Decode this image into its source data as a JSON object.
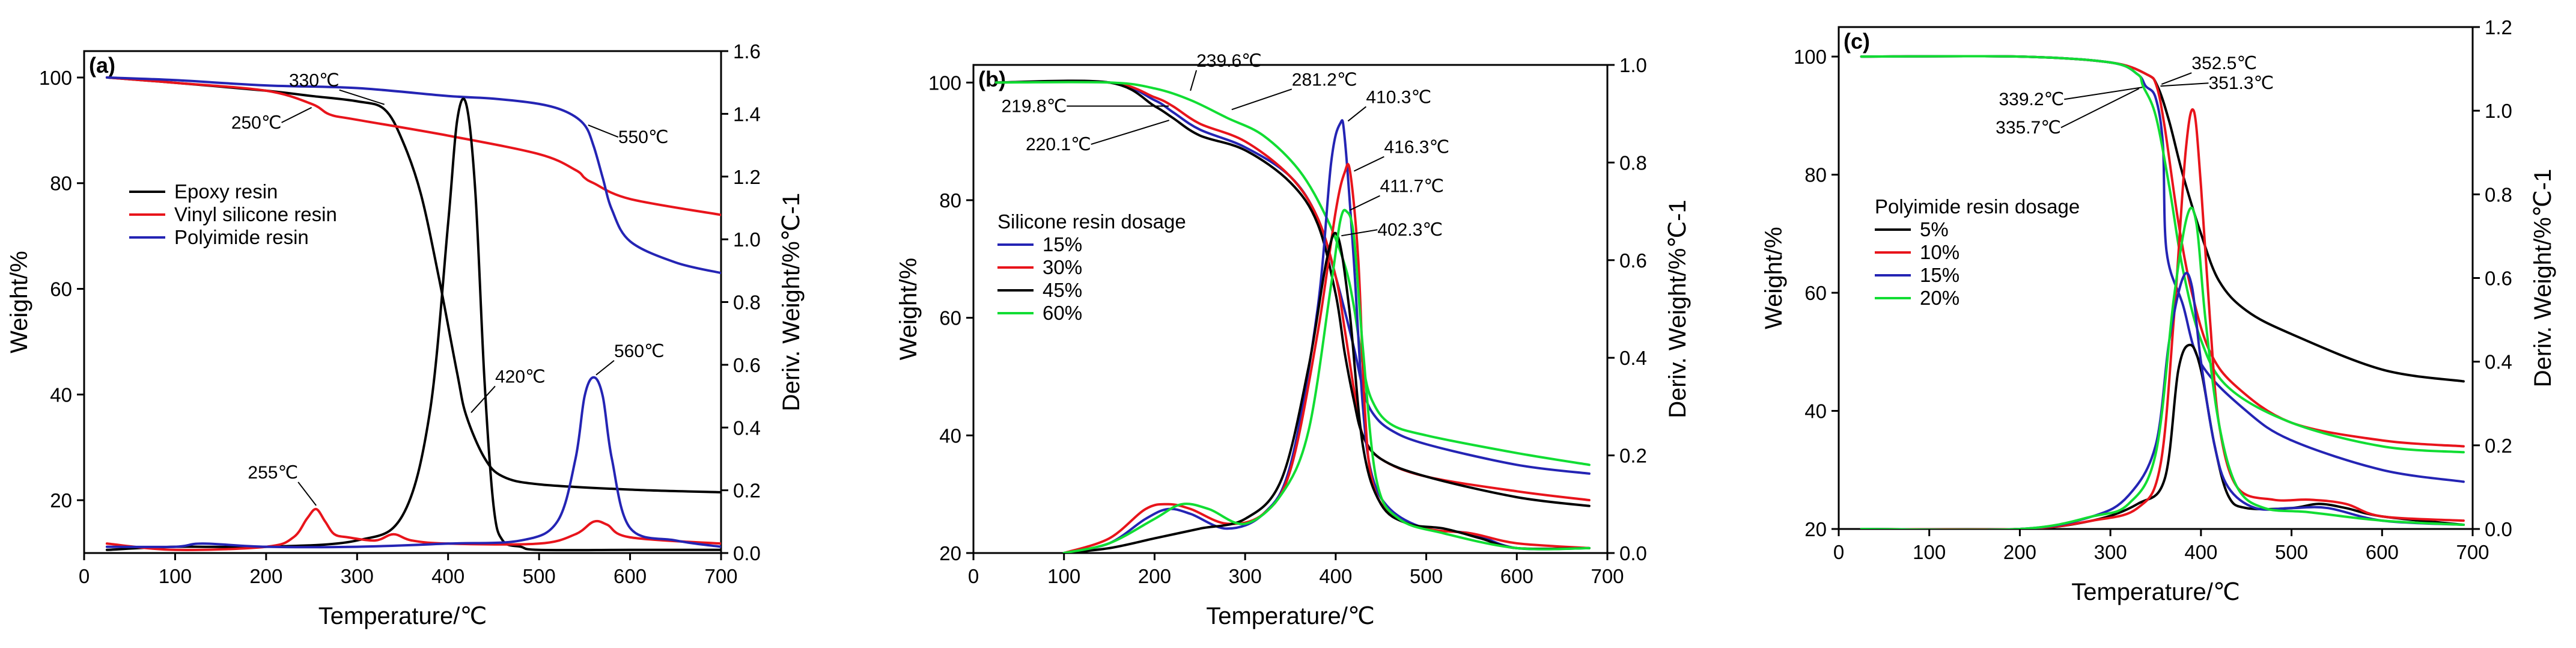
{
  "chart_data": [
    {
      "type": "line",
      "panel": "(a)",
      "xlabel": "Temperature/℃",
      "ylabel": "Weight/%",
      "y2label": "Deriv. Weight/%℃-1",
      "xlim": [
        0,
        700
      ],
      "ylim": [
        10,
        105
      ],
      "y2lim": [
        0,
        1.6
      ],
      "xticks": [
        0,
        100,
        200,
        300,
        400,
        500,
        600,
        700
      ],
      "yticks": [
        20,
        40,
        60,
        80,
        100
      ],
      "y2ticks": [
        0.0,
        0.2,
        0.4,
        0.6,
        0.8,
        1.0,
        1.2,
        1.4,
        1.6
      ],
      "legend": {
        "title": "",
        "position": "left-middle"
      },
      "series": [
        {
          "name": "Epoxy resin",
          "color": "#000000",
          "axis": "y",
          "x": [
            25,
            100,
            200,
            250,
            300,
            330,
            350,
            370,
            390,
            410,
            420,
            440,
            460,
            500,
            600,
            700
          ],
          "values": [
            100,
            99,
            97.5,
            96.5,
            95.5,
            94,
            88,
            78,
            62,
            44,
            36,
            28,
            24.5,
            23,
            22,
            21.5
          ]
        },
        {
          "name": "Vinyl silicone resin",
          "color": "#e8141b",
          "axis": "y",
          "x": [
            25,
            100,
            200,
            250,
            270,
            300,
            400,
            500,
            540,
            550,
            560,
            600,
            700
          ],
          "values": [
            100,
            99,
            97.5,
            95,
            93,
            92,
            89,
            85.5,
            82.5,
            81,
            80,
            77,
            74
          ]
        },
        {
          "name": "Polyimide resin",
          "color": "#2424b4",
          "axis": "y",
          "x": [
            25,
            100,
            200,
            300,
            400,
            450,
            500,
            530,
            550,
            560,
            570,
            580,
            600,
            650,
            700
          ],
          "values": [
            100,
            99.5,
            98.5,
            98,
            96.5,
            96,
            95,
            93.5,
            91,
            87,
            81,
            75,
            69,
            65,
            63
          ]
        },
        {
          "name": "Epoxy resin DTG",
          "color": "#000000",
          "axis": "y2",
          "x": [
            25,
            100,
            200,
            300,
            350,
            380,
            400,
            410,
            420,
            430,
            440,
            450,
            460,
            480,
            500,
            600,
            700
          ],
          "values": [
            0.01,
            0.02,
            0.02,
            0.04,
            0.12,
            0.45,
            1.05,
            1.38,
            1.43,
            1.15,
            0.55,
            0.15,
            0.04,
            0.02,
            0.01,
            0.01,
            0.01
          ]
        },
        {
          "name": "Vinyl silicone resin DTG",
          "color": "#e8141b",
          "axis": "y2",
          "x": [
            25,
            100,
            200,
            230,
            245,
            255,
            265,
            275,
            290,
            320,
            340,
            360,
            400,
            500,
            540,
            560,
            575,
            600,
            700
          ],
          "values": [
            0.03,
            0.01,
            0.02,
            0.05,
            0.11,
            0.14,
            0.1,
            0.06,
            0.05,
            0.04,
            0.06,
            0.04,
            0.03,
            0.03,
            0.06,
            0.1,
            0.09,
            0.05,
            0.03
          ]
        },
        {
          "name": "Polyimide resin DTG",
          "color": "#2424b4",
          "axis": "y2",
          "x": [
            25,
            100,
            130,
            200,
            300,
            400,
            480,
            520,
            540,
            550,
            560,
            570,
            580,
            600,
            650,
            700
          ],
          "values": [
            0.02,
            0.02,
            0.03,
            0.02,
            0.02,
            0.03,
            0.04,
            0.1,
            0.3,
            0.5,
            0.56,
            0.5,
            0.3,
            0.08,
            0.04,
            0.02
          ]
        }
      ],
      "annotations": [
        {
          "text": "330℃",
          "x": 330,
          "y": 94
        },
        {
          "text": "420℃",
          "x": 420,
          "y": 36
        },
        {
          "text": "550℃",
          "x": 550,
          "y": 91
        },
        {
          "text": "250℃",
          "x": 250,
          "y": 95
        },
        {
          "text": "560℃",
          "x": 560,
          "y": 0.56
        },
        {
          "text": "255℃",
          "x": 255,
          "y": 0.14
        }
      ]
    },
    {
      "type": "line",
      "panel": "(b)",
      "xlabel": "Temperature/℃",
      "ylabel": "Weight/%",
      "y2label": "Deriv. Weight/%℃-1",
      "xlim": [
        0,
        700
      ],
      "ylim": [
        20,
        103
      ],
      "y2lim": [
        0,
        1.0
      ],
      "xticks": [
        0,
        100,
        200,
        300,
        400,
        500,
        600,
        700
      ],
      "yticks": [
        20,
        40,
        60,
        80,
        100
      ],
      "y2ticks": [
        0.0,
        0.2,
        0.4,
        0.6,
        0.8,
        1.0
      ],
      "legend": {
        "title": "Silicone resin dosage",
        "position": "left-middle"
      },
      "series": [
        {
          "name": "15%",
          "color": "#2424b4",
          "axis": "y",
          "x": [
            25,
            150,
            200,
            220,
            250,
            300,
            350,
            380,
            400,
            420,
            430,
            440,
            460,
            500,
            600,
            680
          ],
          "values": [
            100,
            100,
            97,
            95,
            92,
            89,
            84,
            77,
            67,
            55,
            48,
            44,
            41,
            38.5,
            35,
            33.5
          ]
        },
        {
          "name": "30%",
          "color": "#e8141b",
          "axis": "y",
          "x": [
            25,
            150,
            200,
            220,
            250,
            300,
            350,
            380,
            400,
            410,
            420,
            430,
            450,
            500,
            600,
            680
          ],
          "values": [
            100,
            100,
            97.5,
            96,
            93,
            90,
            84,
            77,
            67,
            58,
            48,
            40,
            36,
            33,
            30.5,
            29
          ]
        },
        {
          "name": "45%",
          "color": "#000000",
          "axis": "y",
          "x": [
            25,
            150,
            200,
            220,
            250,
            300,
            350,
            380,
            400,
            410,
            420,
            430,
            450,
            500,
            600,
            680
          ],
          "values": [
            100,
            100,
            96,
            94,
            91,
            88.5,
            83,
            76,
            64,
            54,
            46,
            40,
            36,
            33,
            29.5,
            28
          ]
        },
        {
          "name": "60%",
          "color": "#11dd33",
          "axis": "y",
          "x": [
            25,
            150,
            200,
            240,
            280,
            320,
            360,
            390,
            410,
            420,
            430,
            440,
            460,
            500,
            600,
            680
          ],
          "values": [
            100,
            100,
            99,
            97,
            94,
            91,
            85,
            77,
            69,
            62,
            52,
            46,
            42,
            40,
            37,
            35
          ]
        },
        {
          "name": "15% DTG",
          "color": "#2424b4",
          "axis": "y2",
          "x": [
            100,
            150,
            190,
            215,
            240,
            280,
            320,
            350,
            380,
            395,
            405,
            410,
            420,
            430,
            440,
            460,
            500,
            550,
            600,
            680
          ],
          "values": [
            0.0,
            0.02,
            0.07,
            0.09,
            0.08,
            0.05,
            0.08,
            0.18,
            0.5,
            0.8,
            0.88,
            0.85,
            0.6,
            0.3,
            0.16,
            0.09,
            0.05,
            0.04,
            0.01,
            0.01
          ]
        },
        {
          "name": "30% DTG",
          "color": "#e8141b",
          "axis": "y2",
          "x": [
            100,
            150,
            190,
            215,
            240,
            280,
            320,
            350,
            380,
            400,
            410,
            416,
            425,
            432,
            440,
            460,
            500,
            550,
            600,
            680
          ],
          "values": [
            0.0,
            0.03,
            0.09,
            0.1,
            0.09,
            0.06,
            0.08,
            0.17,
            0.45,
            0.7,
            0.78,
            0.78,
            0.6,
            0.3,
            0.15,
            0.08,
            0.05,
            0.04,
            0.02,
            0.01
          ]
        },
        {
          "name": "45% DTG",
          "color": "#000000",
          "axis": "y2",
          "x": [
            100,
            150,
            200,
            250,
            300,
            340,
            370,
            390,
            402,
            415,
            430,
            450,
            480,
            520,
            560,
            600,
            680
          ],
          "values": [
            0.0,
            0.01,
            0.03,
            0.05,
            0.07,
            0.15,
            0.38,
            0.6,
            0.65,
            0.5,
            0.22,
            0.1,
            0.06,
            0.05,
            0.03,
            0.01,
            0.01
          ]
        },
        {
          "name": "60% DTG",
          "color": "#11dd33",
          "axis": "y2",
          "x": [
            100,
            150,
            200,
            230,
            260,
            300,
            340,
            370,
            395,
            405,
            412,
            420,
            430,
            445,
            470,
            520,
            600,
            680
          ],
          "values": [
            0.0,
            0.02,
            0.07,
            0.1,
            0.09,
            0.06,
            0.12,
            0.25,
            0.55,
            0.68,
            0.7,
            0.65,
            0.42,
            0.15,
            0.07,
            0.04,
            0.01,
            0.01
          ]
        }
      ],
      "annotations": [
        {
          "text": "239.6℃",
          "x": 239.6,
          "y": 98
        },
        {
          "text": "281.2℃",
          "x": 281.2,
          "y": 95
        },
        {
          "text": "219.8℃",
          "x": 219.8,
          "y": 96
        },
        {
          "text": "220.1℃",
          "x": 220.1,
          "y": 94
        },
        {
          "text": "410.3℃",
          "x": 410.3,
          "y": 0.88
        },
        {
          "text": "416.3℃",
          "x": 416.3,
          "y": 0.78
        },
        {
          "text": "411.7℃",
          "x": 411.7,
          "y": 0.7
        },
        {
          "text": "402.3℃",
          "x": 402.3,
          "y": 0.65
        }
      ]
    },
    {
      "type": "line",
      "panel": "(c)",
      "xlabel": "Temperature/℃",
      "ylabel": "Weight/%",
      "y2label": "Deriv. Weight/%℃-1",
      "xlim": [
        0,
        700
      ],
      "ylim": [
        20,
        105
      ],
      "y2lim": [
        0,
        1.2
      ],
      "xticks": [
        0,
        100,
        200,
        300,
        400,
        500,
        600,
        700
      ],
      "yticks": [
        20,
        40,
        60,
        80,
        100
      ],
      "y2ticks": [
        0.0,
        0.2,
        0.4,
        0.6,
        0.8,
        1.0,
        1.2
      ],
      "legend": {
        "title": "Polyimide resin dosage",
        "position": "left-middle"
      },
      "series": [
        {
          "name": "5%",
          "color": "#000000",
          "axis": "y",
          "x": [
            25,
            200,
            300,
            340,
            352,
            365,
            380,
            400,
            420,
            450,
            500,
            600,
            690
          ],
          "values": [
            100,
            100,
            99,
            97,
            95,
            89,
            80,
            70,
            62,
            57,
            53,
            47,
            45
          ]
        },
        {
          "name": "10%",
          "color": "#e8141b",
          "axis": "y",
          "x": [
            25,
            200,
            300,
            340,
            351,
            360,
            375,
            390,
            410,
            440,
            500,
            600,
            690
          ],
          "values": [
            100,
            100,
            99,
            97,
            95,
            88,
            72,
            60,
            50,
            44,
            38,
            35,
            34
          ]
        },
        {
          "name": "15%",
          "color": "#2424b4",
          "axis": "y",
          "x": [
            25,
            200,
            300,
            330,
            339,
            350,
            358,
            362,
            380,
            400,
            450,
            500,
            600,
            690
          ],
          "values": [
            100,
            100,
            99,
            97,
            95,
            93,
            85,
            67,
            58,
            48,
            40,
            35,
            30,
            28
          ]
        },
        {
          "name": "20%",
          "color": "#11dd33",
          "axis": "y",
          "x": [
            25,
            200,
            300,
            330,
            336,
            350,
            365,
            380,
            400,
            430,
            500,
            600,
            690
          ],
          "values": [
            100,
            100,
            99,
            97,
            95,
            90,
            78,
            64,
            52,
            44,
            38,
            34,
            33
          ]
        },
        {
          "name": "5% DTG",
          "color": "#000000",
          "axis": "y2",
          "x": [
            25,
            200,
            280,
            330,
            360,
            375,
            388,
            400,
            415,
            430,
            450,
            500,
            530,
            560,
            600,
            690
          ],
          "values": [
            0.0,
            0.0,
            0.02,
            0.06,
            0.12,
            0.38,
            0.44,
            0.38,
            0.2,
            0.08,
            0.05,
            0.05,
            0.06,
            0.05,
            0.03,
            0.01
          ]
        },
        {
          "name": "10% DTG",
          "color": "#e8141b",
          "axis": "y2",
          "x": [
            25,
            200,
            280,
            330,
            355,
            370,
            383,
            392,
            400,
            410,
            420,
            440,
            480,
            520,
            560,
            600,
            690
          ],
          "values": [
            0.0,
            0.0,
            0.02,
            0.05,
            0.15,
            0.5,
            0.9,
            1.0,
            0.82,
            0.5,
            0.25,
            0.1,
            0.07,
            0.07,
            0.06,
            0.03,
            0.02
          ]
        },
        {
          "name": "15% DTG",
          "color": "#2424b4",
          "axis": "y2",
          "x": [
            25,
            200,
            280,
            320,
            350,
            365,
            380,
            390,
            400,
            415,
            430,
            460,
            500,
            540,
            600,
            690
          ],
          "values": [
            0.0,
            0.0,
            0.03,
            0.08,
            0.2,
            0.45,
            0.6,
            0.58,
            0.4,
            0.2,
            0.1,
            0.05,
            0.05,
            0.05,
            0.02,
            0.01
          ]
        },
        {
          "name": "20% DTG",
          "color": "#11dd33",
          "axis": "y2",
          "x": [
            25,
            200,
            280,
            320,
            350,
            370,
            385,
            395,
            405,
            420,
            440,
            470,
            520,
            600,
            690
          ],
          "values": [
            0.0,
            0.0,
            0.03,
            0.06,
            0.18,
            0.55,
            0.75,
            0.73,
            0.5,
            0.25,
            0.1,
            0.05,
            0.04,
            0.02,
            0.01
          ]
        }
      ],
      "annotations": [
        {
          "text": "352.5℃",
          "x": 352.5,
          "y": 95
        },
        {
          "text": "351.3℃",
          "x": 351.3,
          "y": 95
        },
        {
          "text": "339.2℃",
          "x": 339.2,
          "y": 95
        },
        {
          "text": "335.7℃",
          "x": 335.7,
          "y": 95
        }
      ]
    }
  ]
}
